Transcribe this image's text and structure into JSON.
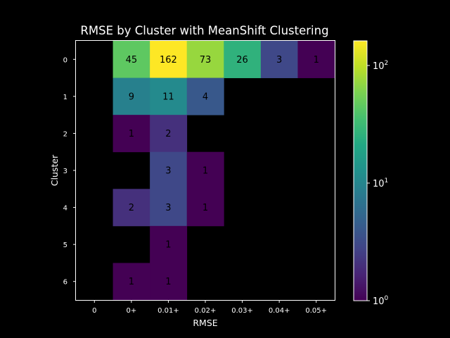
{
  "chart_data": {
    "type": "heatmap",
    "title": "RMSE by Cluster with MeanShift Clustering",
    "xlabel": "RMSE",
    "ylabel": "Cluster",
    "x_categories": [
      "0",
      "0+",
      "0.01+",
      "0.02+",
      "0.03+",
      "0.04+",
      "0.05+"
    ],
    "y_categories": [
      "0",
      "1",
      "2",
      "3",
      "4",
      "5",
      "6"
    ],
    "values": [
      [
        null,
        45,
        162,
        73,
        26,
        3,
        1
      ],
      [
        null,
        9,
        11,
        4,
        null,
        null,
        null
      ],
      [
        null,
        1,
        2,
        null,
        null,
        null,
        null
      ],
      [
        null,
        null,
        3,
        1,
        null,
        null,
        null
      ],
      [
        null,
        2,
        3,
        1,
        null,
        null,
        null
      ],
      [
        null,
        null,
        1,
        null,
        null,
        null,
        null
      ],
      [
        null,
        1,
        1,
        null,
        null,
        null,
        null
      ]
    ],
    "color_scale": "log",
    "colormap": "viridis",
    "colorbar": {
      "range": [
        1,
        162
      ],
      "ticks": [
        {
          "value": 1,
          "base": "10",
          "exp": "0"
        },
        {
          "value": 10,
          "base": "10",
          "exp": "1"
        },
        {
          "value": 100,
          "base": "10",
          "exp": "2"
        }
      ]
    },
    "background": "#000000",
    "foreground": "#ffffff"
  }
}
